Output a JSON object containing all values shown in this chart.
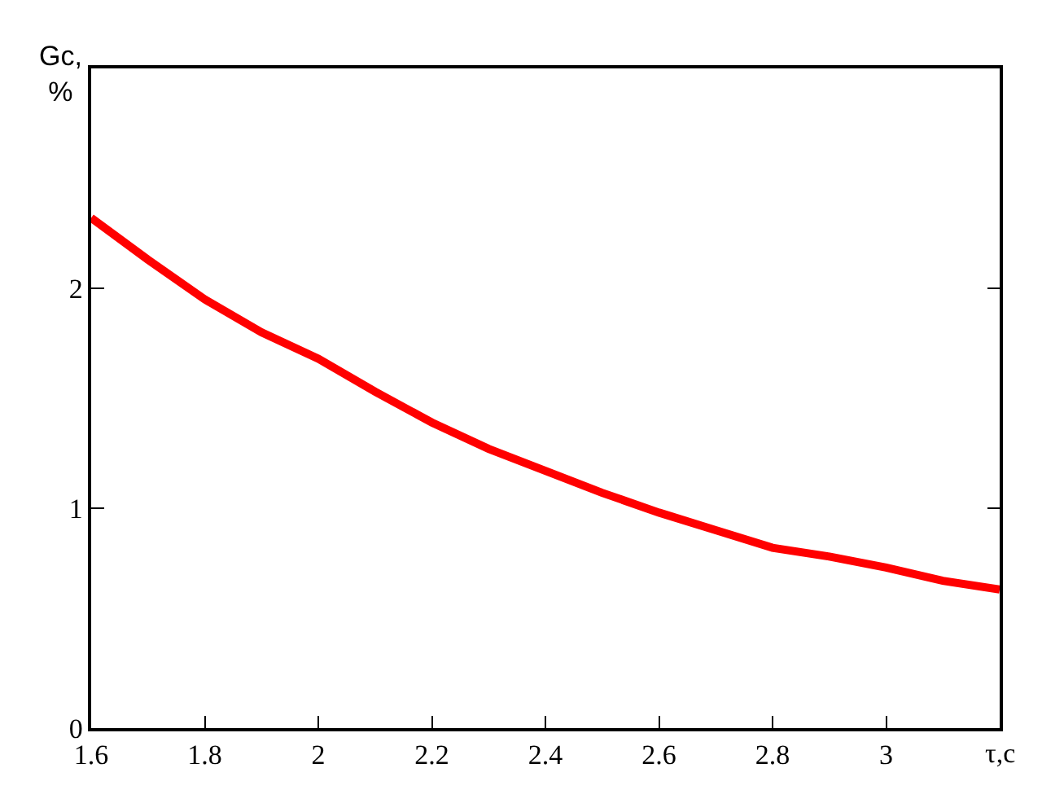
{
  "chart_data": {
    "type": "line",
    "xlabel": "τ,c",
    "ylabel": "Gc,\n%",
    "x": [
      1.6,
      1.7,
      1.8,
      1.9,
      2.0,
      2.1,
      2.2,
      2.3,
      2.4,
      2.5,
      2.6,
      2.7,
      2.8,
      2.9,
      3.0,
      3.1,
      3.2
    ],
    "series": [
      {
        "color": "#ff0000",
        "values": [
          2.32,
          2.13,
          1.95,
          1.8,
          1.68,
          1.53,
          1.39,
          1.27,
          1.17,
          1.07,
          0.98,
          0.9,
          0.82,
          0.78,
          0.73,
          0.67,
          0.63
        ]
      }
    ],
    "xlim": [
      1.6,
      3.2
    ],
    "xticks": [
      1.6,
      1.8,
      2,
      2.2,
      2.4,
      2.6,
      2.8,
      3
    ],
    "ylim": [
      0,
      3
    ],
    "yticks": [
      0,
      1,
      2
    ],
    "legend": false,
    "marker": "none",
    "line_style": "solid"
  }
}
